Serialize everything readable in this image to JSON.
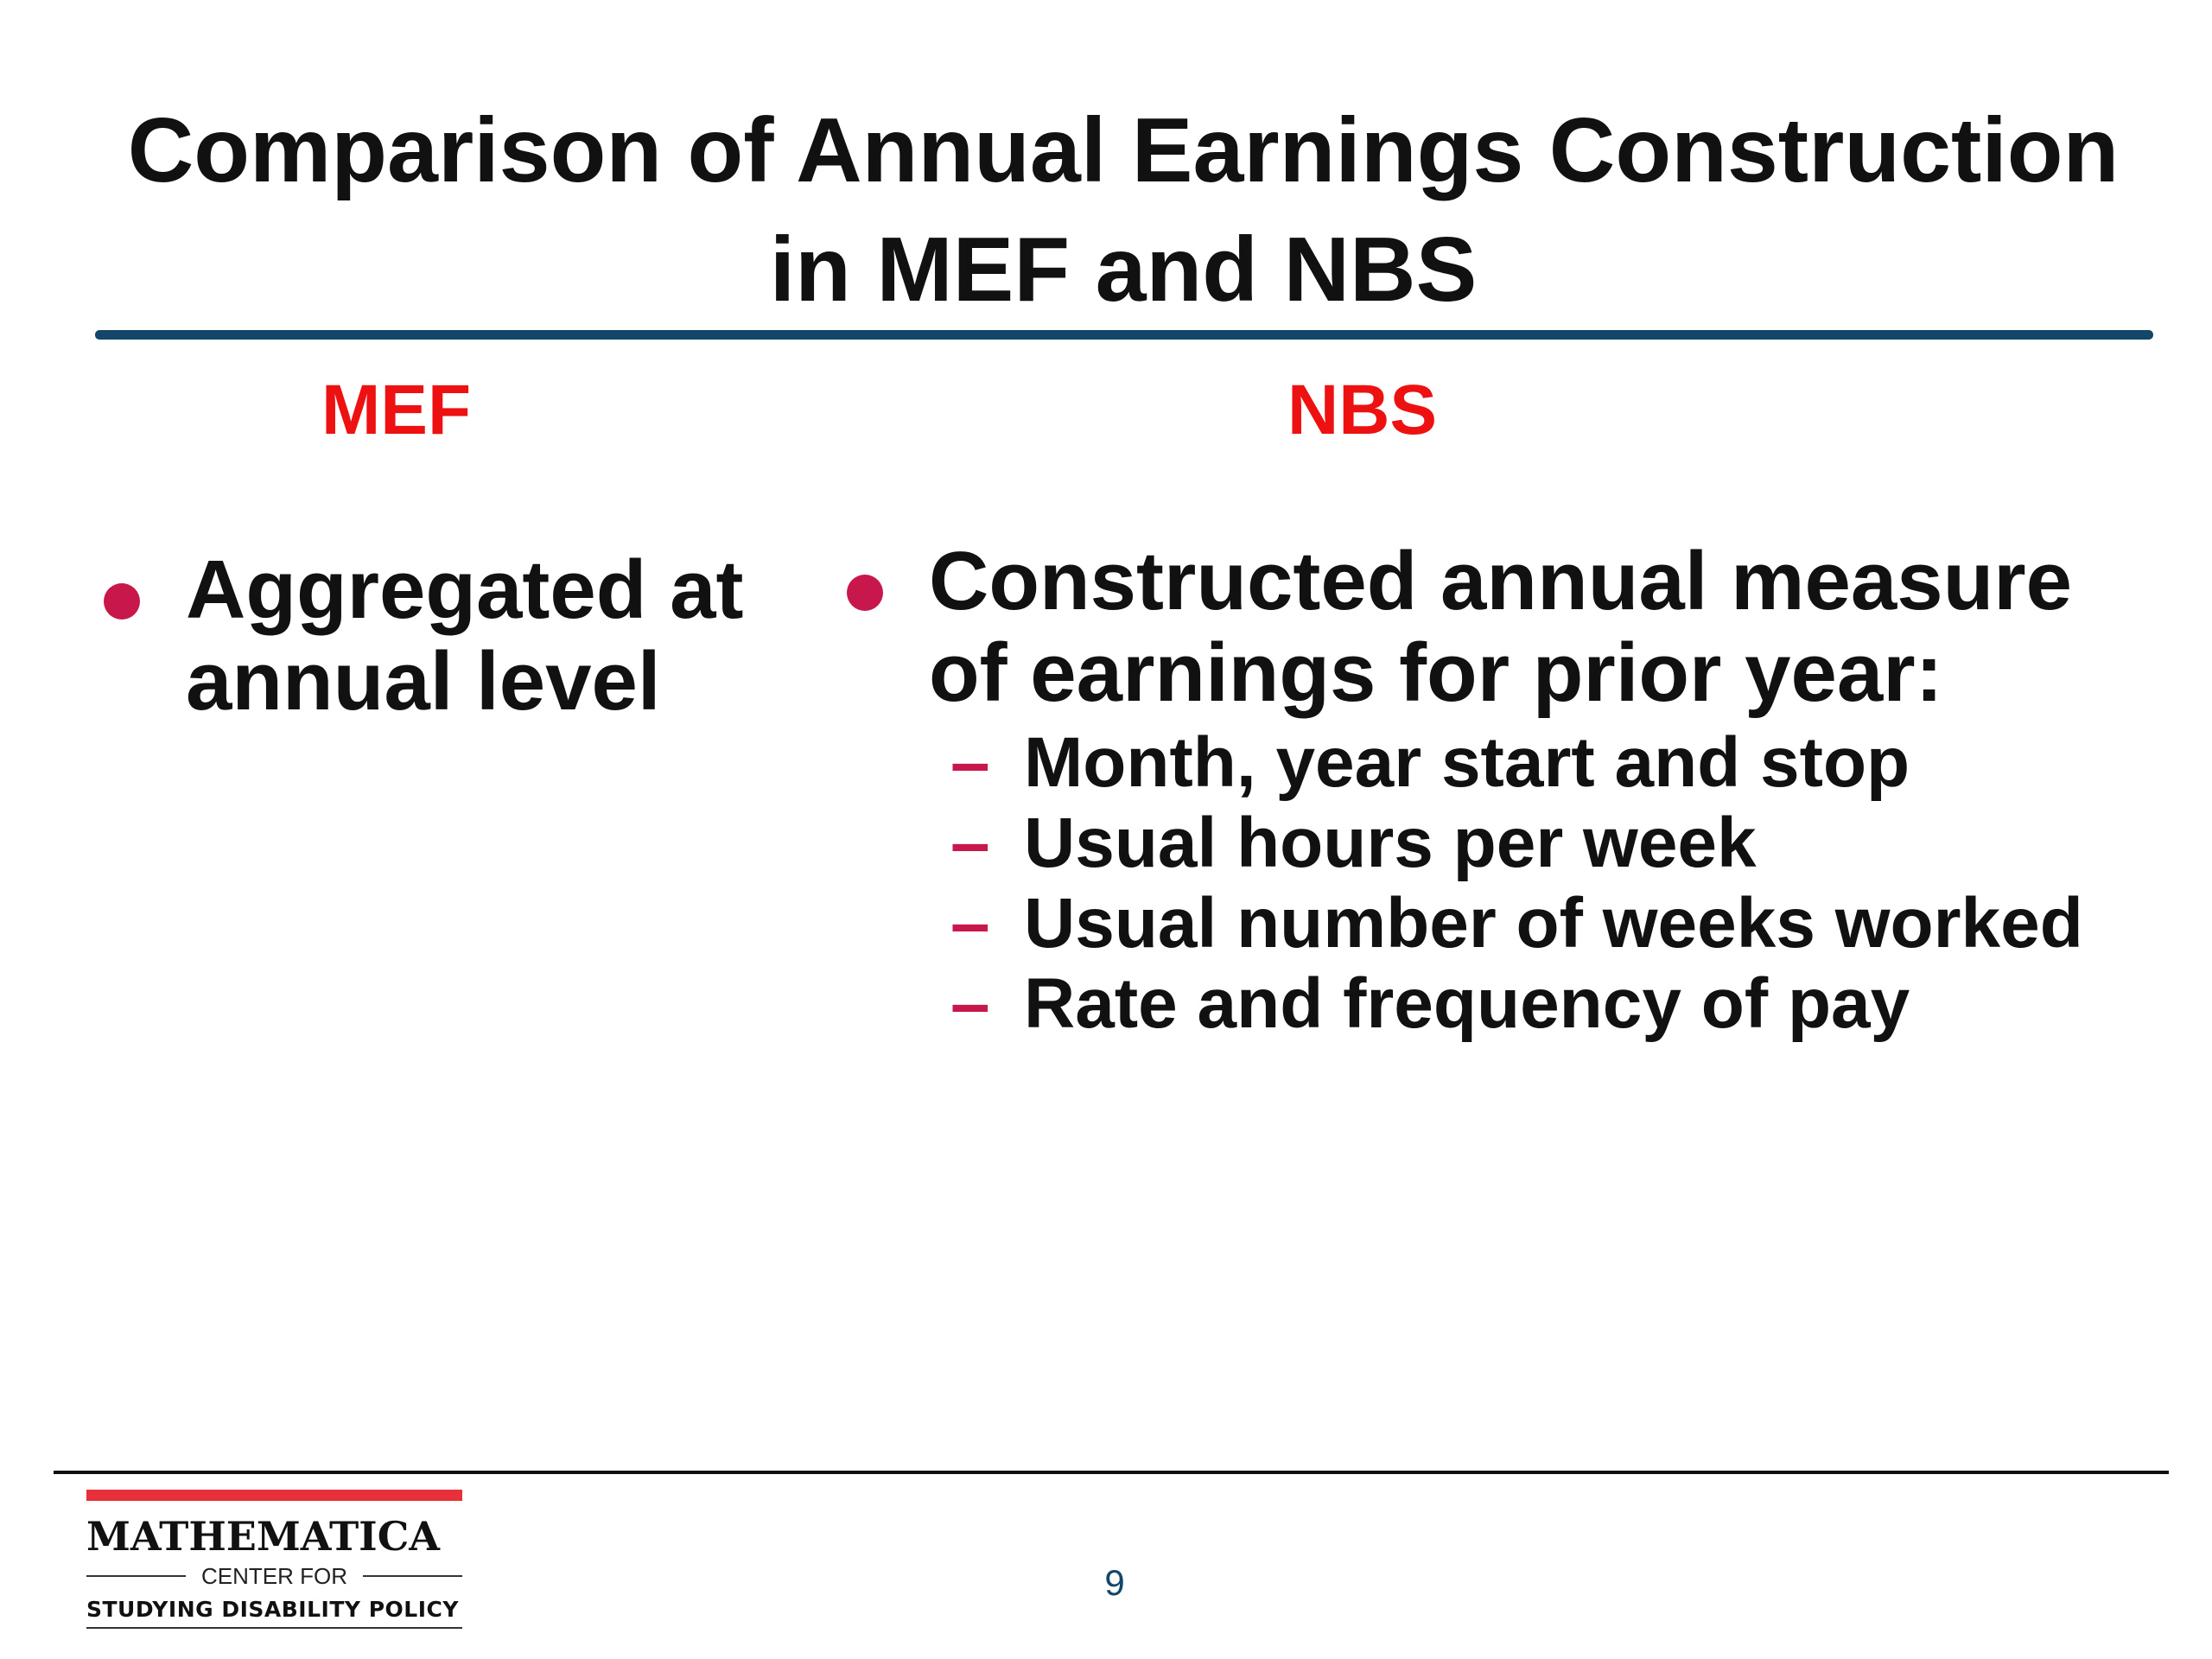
{
  "slide": {
    "title_line1": "Comparison of Annual Earnings Construction",
    "title_line2": "in MEF and NBS",
    "columns": {
      "left": {
        "heading": "MEF",
        "bullets": [
          {
            "line1": "Aggregated at",
            "line2": "annual level"
          }
        ]
      },
      "right": {
        "heading": "NBS",
        "bullets": [
          {
            "line1": "Constructed annual measure",
            "line2": "of earnings for prior year:",
            "subitems": [
              "Month, year start and stop",
              "Usual hours per week",
              "Usual number of weeks worked",
              "Rate and frequency of pay"
            ]
          }
        ]
      }
    },
    "page_number": "9"
  },
  "footer": {
    "logo": {
      "name": "MATHEMATICA",
      "center_for": "CENTER FOR",
      "subtitle": "STUDYING DISABILITY POLICY"
    }
  },
  "colors": {
    "title_rule": "#14466a",
    "heading": "#ee1111",
    "bullet": "#c8174a",
    "logo_bar": "#e8303a"
  }
}
